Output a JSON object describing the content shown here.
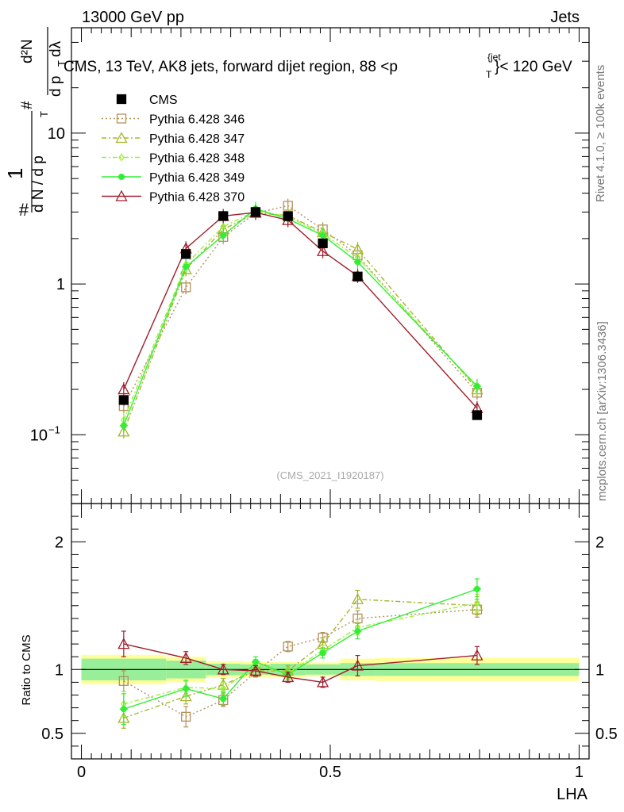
{
  "header": {
    "energy_label": "13000 GeV pp",
    "category_label": "Jets"
  },
  "side_labels": {
    "rivet": "Rivet 4.1.0, ≥ 100k events",
    "mcplots": "mcplots.cern.ch [arXiv:1306.3436]"
  },
  "chart_data": {
    "type": "scatter",
    "title_main": "CMS, 13 TeV, AK8 jets, forward dijet region, 88 <p",
    "title_sup": "{jet",
    "title_sub": "T",
    "title_end": "}< 120 GeV",
    "watermark": "(CMS_2021_I1920187)",
    "xlabel": "LHA",
    "ylabel": {
      "frac1": "1",
      "hash1": "#",
      "dN": "d N / d p",
      "T1": "T",
      "hash2": "#",
      "d2N": "d²N",
      "dpT": "d p",
      "T2": "T",
      "dlambda": "dλ"
    },
    "ratio_ylabel": "Ratio to CMS",
    "xlim": [
      -0.02,
      1.02
    ],
    "ylim_main": [
      0.035,
      50
    ],
    "ylim_ratio": [
      0.3,
      2.3
    ],
    "main_ticks": [
      {
        "label": "10",
        "sup": "−1",
        "value": 0.1
      },
      {
        "label": "1",
        "sup": "",
        "value": 1
      },
      {
        "label": "10",
        "sup": "",
        "value": 10
      }
    ],
    "ratio_ticks": [
      {
        "label": "0.5",
        "value": 0.5
      },
      {
        "label": "1",
        "value": 1
      },
      {
        "label": "2",
        "value": 2
      }
    ],
    "x_ticks": [
      {
        "label": "0",
        "value": 0
      },
      {
        "label": "0.5",
        "value": 0.5
      },
      {
        "label": "1",
        "value": 1
      }
    ],
    "bins": [
      0.0,
      0.17,
      0.25,
      0.32,
      0.38,
      0.45,
      0.52,
      0.59,
      1.0
    ],
    "x": [
      0.085,
      0.21,
      0.285,
      0.35,
      0.415,
      0.485,
      0.555,
      0.795
    ],
    "data": {
      "name": "CMS",
      "values": [
        0.17,
        1.58,
        2.82,
        3.0,
        2.82,
        1.86,
        1.12,
        0.135
      ]
    },
    "band_inner": [
      0.085,
      0.07,
      0.045,
      0.04,
      0.045,
      0.04,
      0.05,
      0.05
    ],
    "band_outer": [
      0.115,
      0.1,
      0.065,
      0.06,
      0.06,
      0.055,
      0.085,
      0.09
    ],
    "series": [
      {
        "name": "Pythia 6.428 346",
        "color": "#b5915a",
        "marker": "square",
        "dash": "2,3",
        "values": [
          0.155,
          0.95,
          2.05,
          2.95,
          3.3,
          2.3,
          1.55,
          0.19
        ],
        "ratio": [
          0.91,
          0.63,
          0.76,
          0.98,
          1.18,
          1.25,
          1.4,
          1.47
        ],
        "ratio_err": [
          0.08,
          0.08,
          0.05,
          0.04,
          0.04,
          0.04,
          0.06,
          0.06
        ]
      },
      {
        "name": "Pythia 6.428 347",
        "color": "#a6b52a",
        "marker": "triangle",
        "dash": "6,3,2,3",
        "values": [
          0.105,
          1.25,
          2.3,
          2.95,
          2.85,
          2.2,
          1.7,
          0.2
        ],
        "ratio": [
          0.62,
          0.79,
          0.88,
          0.99,
          0.99,
          1.2,
          1.55,
          1.5
        ],
        "ratio_err": [
          0.08,
          0.06,
          0.05,
          0.04,
          0.04,
          0.05,
          0.07,
          0.07
        ]
      },
      {
        "name": "Pythia 6.428 348",
        "color": "#9cf03c",
        "marker": "diamond",
        "dash": "6,3,2,3",
        "values": [
          0.125,
          1.35,
          2.4,
          3.05,
          2.8,
          2.15,
          1.5,
          0.205
        ],
        "ratio": [
          0.73,
          0.86,
          0.85,
          1.03,
          0.97,
          1.15,
          1.33,
          1.52
        ],
        "ratio_err": [
          0.1,
          0.06,
          0.05,
          0.04,
          0.04,
          0.04,
          0.06,
          0.07
        ]
      },
      {
        "name": "Pythia 6.428 349",
        "color": "#33ee33",
        "marker": "cross",
        "dash": "",
        "values": [
          0.115,
          1.3,
          2.1,
          3.15,
          2.7,
          2.1,
          1.4,
          0.21
        ],
        "ratio": [
          0.69,
          0.85,
          0.77,
          1.06,
          0.96,
          1.13,
          1.3,
          1.63
        ],
        "ratio_err": [
          0.12,
          0.06,
          0.05,
          0.04,
          0.04,
          0.04,
          0.06,
          0.08
        ]
      },
      {
        "name": "Pythia 6.428 370",
        "color": "#a01e2d",
        "marker": "triangle",
        "dash": "",
        "values": [
          0.2,
          1.72,
          2.82,
          2.98,
          2.65,
          1.65,
          1.13,
          0.15
        ],
        "ratio": [
          1.2,
          1.09,
          1.0,
          0.99,
          0.94,
          0.9,
          1.03,
          1.11
        ],
        "ratio_err": [
          0.1,
          0.05,
          0.04,
          0.04,
          0.04,
          0.04,
          0.08,
          0.07
        ]
      }
    ]
  }
}
